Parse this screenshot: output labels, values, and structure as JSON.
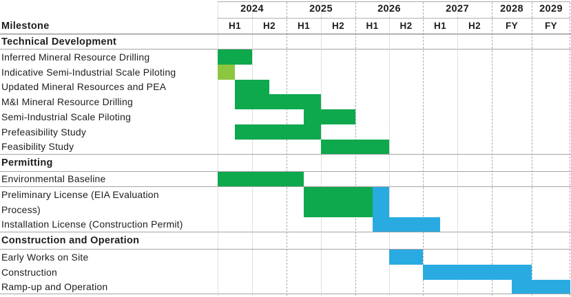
{
  "header": {
    "milestone_label": "Milestone",
    "years": [
      {
        "label": "2024",
        "cols": 2
      },
      {
        "label": "2025",
        "cols": 2
      },
      {
        "label": "2026",
        "cols": 2
      },
      {
        "label": "2027",
        "cols": 2
      },
      {
        "label": "2028",
        "cols": 1
      },
      {
        "label": "2029",
        "cols": 1
      }
    ],
    "periods": [
      "H1",
      "H2",
      "H1",
      "H2",
      "H1",
      "H2",
      "H1",
      "H2",
      "FY",
      "FY"
    ]
  },
  "colors": {
    "green": "#0ea84d",
    "lightgreen": "#8cc63f",
    "blue": "#29abe2"
  },
  "chart_data": {
    "type": "gantt",
    "axis": {
      "columns": [
        "2024 H1",
        "2024 H2",
        "2025 H1",
        "2025 H2",
        "2026 H1",
        "2026 H2",
        "2027 H1",
        "2027 H2",
        "2028 FY",
        "2029 FY"
      ],
      "unit_note": "u0/u1 are column-edge units: 0 = start of 2024 H1, 10 = end of 2029 FY; a 0.5 step inside a half-year column equals one quarter"
    },
    "sections": [
      {
        "title": "Technical Development",
        "tasks": [
          {
            "label": "Inferred Mineral Resource Drilling",
            "segments": [
              {
                "color": "green",
                "u0": 0,
                "u1": 1,
                "period": "2024 H1"
              }
            ]
          },
          {
            "label": "Indicative Semi-Industrial Scale Piloting",
            "segments": [
              {
                "color": "lightgreen",
                "u0": 0,
                "u1": 0.5,
                "period": "2024 Q1"
              }
            ]
          },
          {
            "label": "Updated Mineral Resources and PEA",
            "segments": [
              {
                "color": "green",
                "u0": 0.5,
                "u1": 1.5,
                "period": "2024 Q2 - 2024 Q3"
              }
            ]
          },
          {
            "label": "M&I Mineral Resource Drilling",
            "segments": [
              {
                "color": "green",
                "u0": 0.5,
                "u1": 3,
                "period": "2024 Q2 - 2025 H1"
              }
            ]
          },
          {
            "label": "Semi-Industrial Scale Piloting",
            "segments": [
              {
                "color": "green",
                "u0": 2.5,
                "u1": 4,
                "period": "2025 Q2 - 2025 H2"
              }
            ]
          },
          {
            "label": "Prefeasibility Study",
            "segments": [
              {
                "color": "green",
                "u0": 0.5,
                "u1": 3,
                "period": "2024 Q2 - 2025 H1"
              }
            ]
          },
          {
            "label": "Feasibility Study",
            "segments": [
              {
                "color": "green",
                "u0": 3,
                "u1": 5,
                "period": "2025 H2 - 2026 H1"
              }
            ]
          }
        ]
      },
      {
        "title": "Permitting",
        "tasks": [
          {
            "label": "Environmental Baseline",
            "segments": [
              {
                "color": "green",
                "u0": 0,
                "u1": 2.5,
                "period": "2024 - 2025 Q1"
              }
            ],
            "rule_below": true
          },
          {
            "label": "Preliminary License (EIA Evaluation Process)",
            "lines": [
              "Preliminary License (EIA Evaluation",
              "Process)"
            ],
            "tall": true,
            "segments": [
              {
                "color": "green",
                "u0": 2.5,
                "u1": 4.5,
                "period": "2025 Q2 - 2026 Q1"
              },
              {
                "color": "blue",
                "u0": 4.5,
                "u1": 5,
                "period": "2026 Q2"
              }
            ]
          },
          {
            "label": "Installation License (Construction Permit)",
            "segments": [
              {
                "color": "blue",
                "u0": 4.5,
                "u1": 6.5,
                "period": "2026 Q2 - 2027 Q1"
              }
            ]
          }
        ]
      },
      {
        "title": "Construction and Operation",
        "tasks": [
          {
            "label": "Early Works on Site",
            "segments": [
              {
                "color": "blue",
                "u0": 5,
                "u1": 6,
                "period": "2026 H2"
              }
            ]
          },
          {
            "label": "Construction",
            "segments": [
              {
                "color": "blue",
                "u0": 6,
                "u1": 9,
                "period": "2027 - 2028"
              }
            ]
          },
          {
            "label": "Ramp-up and Operation",
            "segments": [
              {
                "color": "blue",
                "u0": 8.5,
                "u1": 10,
                "period": "mid-2028 - 2029"
              }
            ]
          }
        ]
      }
    ]
  }
}
